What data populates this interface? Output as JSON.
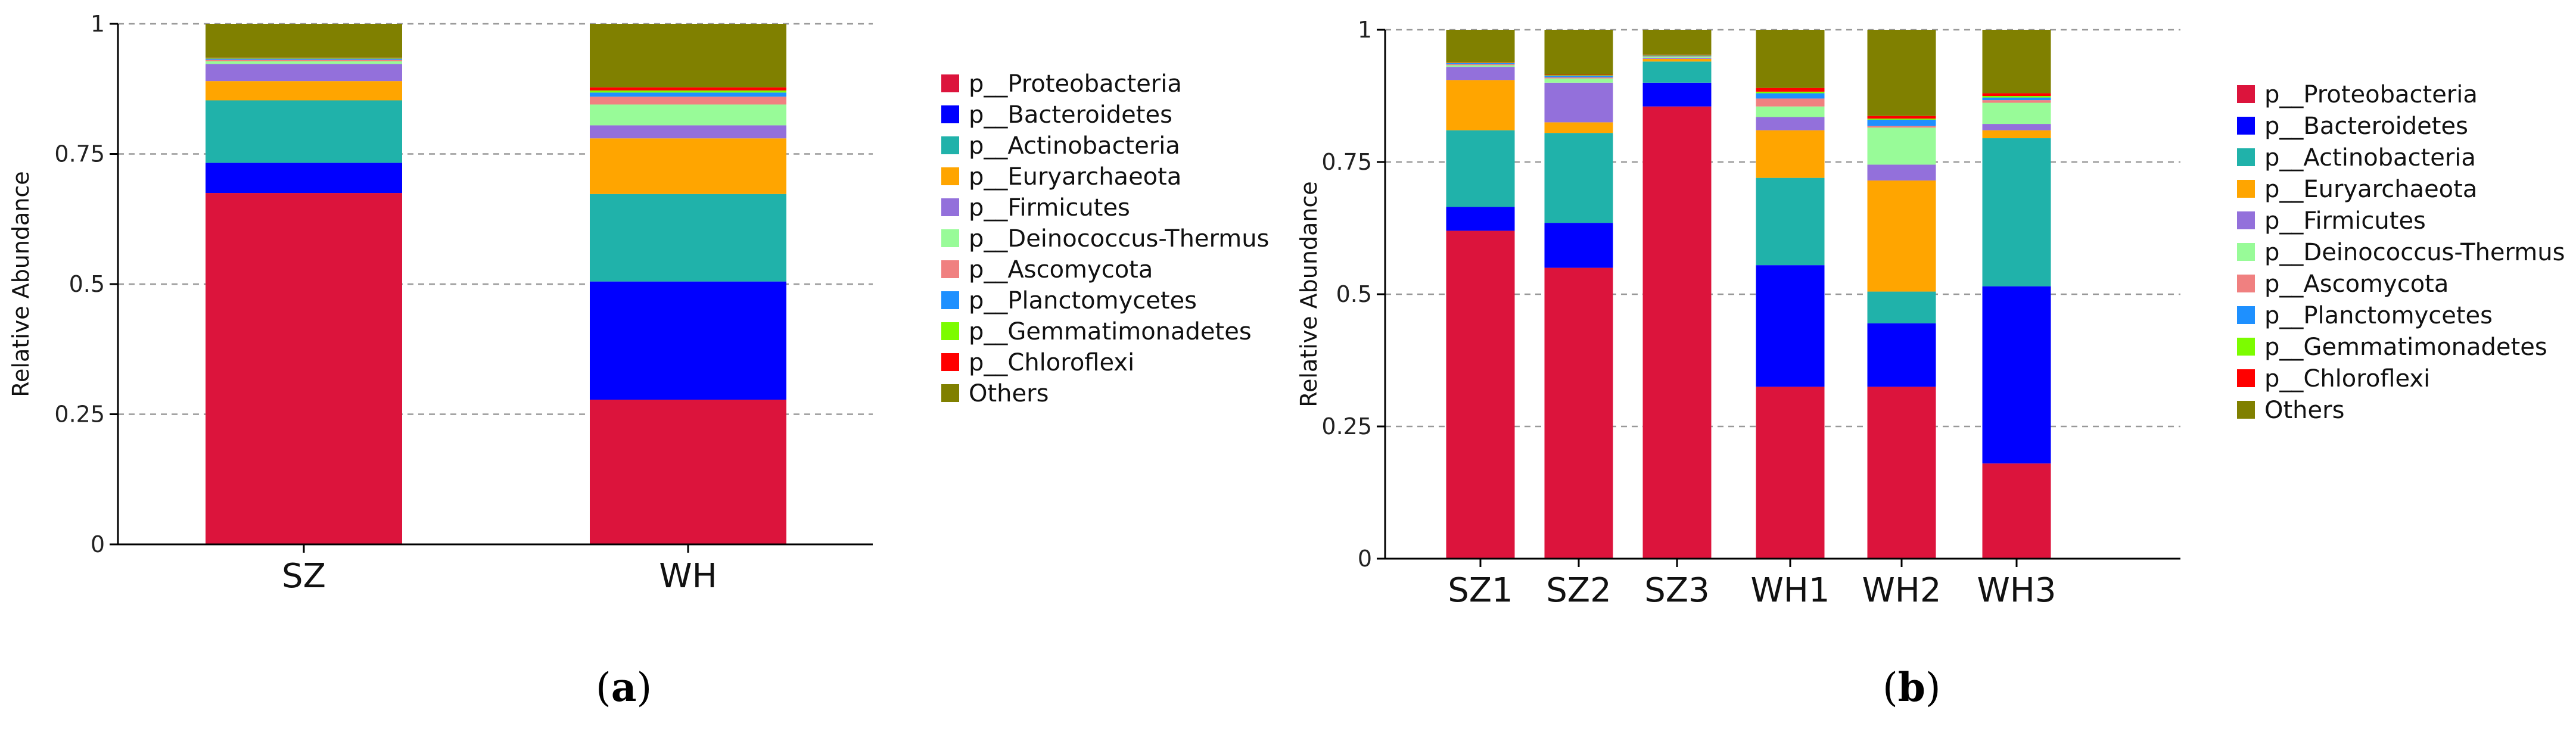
{
  "phyla": [
    {
      "name": "p__Proteobacteria",
      "color": "#DC143C"
    },
    {
      "name": "p__Bacteroidetes",
      "color": "#0000FF"
    },
    {
      "name": "p__Actinobacteria",
      "color": "#20B2AA"
    },
    {
      "name": "p__Euryarchaeota",
      "color": "#FFA500"
    },
    {
      "name": "p__Firmicutes",
      "color": "#9370DB"
    },
    {
      "name": "p__Deinococcus-Thermus",
      "color": "#98FB98"
    },
    {
      "name": "p__Ascomycota",
      "color": "#F08080"
    },
    {
      "name": "p__Planctomycetes",
      "color": "#1E90FF"
    },
    {
      "name": "p__Gemmatimonadetes",
      "color": "#7CFC00"
    },
    {
      "name": "p__Chloroflexi",
      "color": "#FF0000"
    },
    {
      "name": "Others",
      "color": "#808000"
    }
  ],
  "panel_labels": {
    "a": "a",
    "b": "b"
  },
  "chart_data": [
    {
      "id": "a",
      "type": "bar",
      "stacked": true,
      "ylabel": "Relative Abundance",
      "ylim": [
        0,
        1
      ],
      "yticks": [
        "0",
        "0.25",
        "0.5",
        "0.75",
        "1"
      ],
      "categories": [
        "SZ",
        "WH"
      ],
      "series": [
        {
          "name": "p__Proteobacteria",
          "values": [
            0.675,
            0.278
          ]
        },
        {
          "name": "p__Bacteroidetes",
          "values": [
            0.058,
            0.227
          ]
        },
        {
          "name": "p__Actinobacteria",
          "values": [
            0.12,
            0.168
          ]
        },
        {
          "name": "p__Euryarchaeota",
          "values": [
            0.037,
            0.107
          ]
        },
        {
          "name": "p__Firmicutes",
          "values": [
            0.033,
            0.025
          ]
        },
        {
          "name": "p__Deinococcus-Thermus",
          "values": [
            0.005,
            0.04
          ]
        },
        {
          "name": "p__Ascomycota",
          "values": [
            0.003,
            0.015
          ]
        },
        {
          "name": "p__Planctomycetes",
          "values": [
            0.002,
            0.008
          ]
        },
        {
          "name": "p__Gemmatimonadetes",
          "values": [
            0.001,
            0.004
          ]
        },
        {
          "name": "p__Chloroflexi",
          "values": [
            0.001,
            0.006
          ]
        },
        {
          "name": "Others",
          "values": [
            0.065,
            0.122
          ]
        }
      ]
    },
    {
      "id": "b",
      "type": "bar",
      "stacked": true,
      "ylabel": "Relative Abundance",
      "ylim": [
        0,
        1
      ],
      "yticks": [
        "0",
        "0.25",
        "0.5",
        "0.75",
        "1"
      ],
      "categories": [
        "SZ1",
        "SZ2",
        "SZ3",
        "WH1",
        "WH2",
        "WH3"
      ],
      "series": [
        {
          "name": "p__Proteobacteria",
          "values": [
            0.62,
            0.55,
            0.855,
            0.325,
            0.325,
            0.18
          ]
        },
        {
          "name": "p__Bacteroidetes",
          "values": [
            0.045,
            0.085,
            0.045,
            0.23,
            0.12,
            0.335
          ]
        },
        {
          "name": "p__Actinobacteria",
          "values": [
            0.145,
            0.17,
            0.04,
            0.165,
            0.06,
            0.28
          ]
        },
        {
          "name": "p__Euryarchaeota",
          "values": [
            0.095,
            0.02,
            0.005,
            0.09,
            0.21,
            0.015
          ]
        },
        {
          "name": "p__Firmicutes",
          "values": [
            0.025,
            0.075,
            0.002,
            0.025,
            0.03,
            0.012
          ]
        },
        {
          "name": "p__Deinococcus-Thermus",
          "values": [
            0.003,
            0.008,
            0.002,
            0.02,
            0.07,
            0.04
          ]
        },
        {
          "name": "p__Ascomycota",
          "values": [
            0.002,
            0.002,
            0.001,
            0.015,
            0.003,
            0.005
          ]
        },
        {
          "name": "p__Planctomycetes",
          "values": [
            0.002,
            0.003,
            0.001,
            0.01,
            0.012,
            0.005
          ]
        },
        {
          "name": "p__Gemmatimonadetes",
          "values": [
            0.001,
            0.001,
            0.001,
            0.003,
            0.002,
            0.003
          ]
        },
        {
          "name": "p__Chloroflexi",
          "values": [
            0.001,
            0.001,
            0.001,
            0.007,
            0.005,
            0.005
          ]
        },
        {
          "name": "Others",
          "values": [
            0.061,
            0.085,
            0.047,
            0.11,
            0.163,
            0.12
          ]
        }
      ]
    }
  ]
}
